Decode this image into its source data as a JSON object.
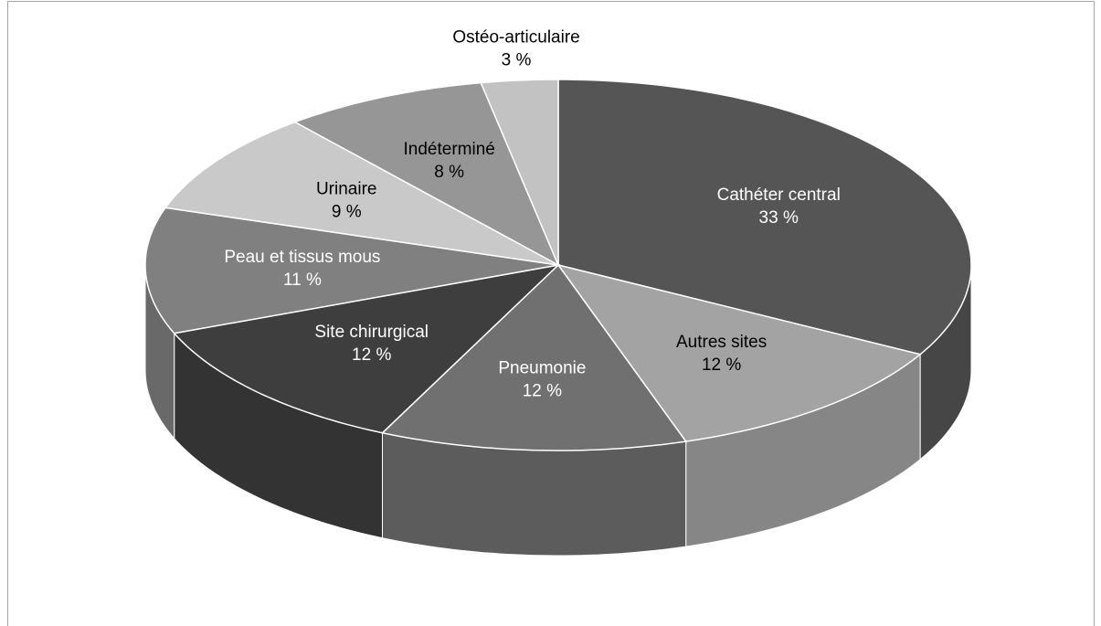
{
  "chart_data": {
    "type": "pie",
    "categories": [
      "Cathéter central",
      "Autres sites",
      "Pneumonie",
      "Site chirurgical",
      "Peau et tissus mous",
      "Urinaire",
      "Indéterminé",
      "Ostéo-articulaire"
    ],
    "values": [
      33,
      12,
      12,
      12,
      11,
      9,
      8,
      3
    ],
    "value_labels": [
      "33 %",
      "12 %",
      "12 %",
      "12 %",
      "11 %",
      "9 %",
      "8 %",
      "3 %"
    ],
    "colors": [
      "#555555",
      "#a3a3a3",
      "#707070",
      "#3e3e3e",
      "#808080",
      "#c9c9c9",
      "#969696",
      "#c2c2c2"
    ]
  }
}
